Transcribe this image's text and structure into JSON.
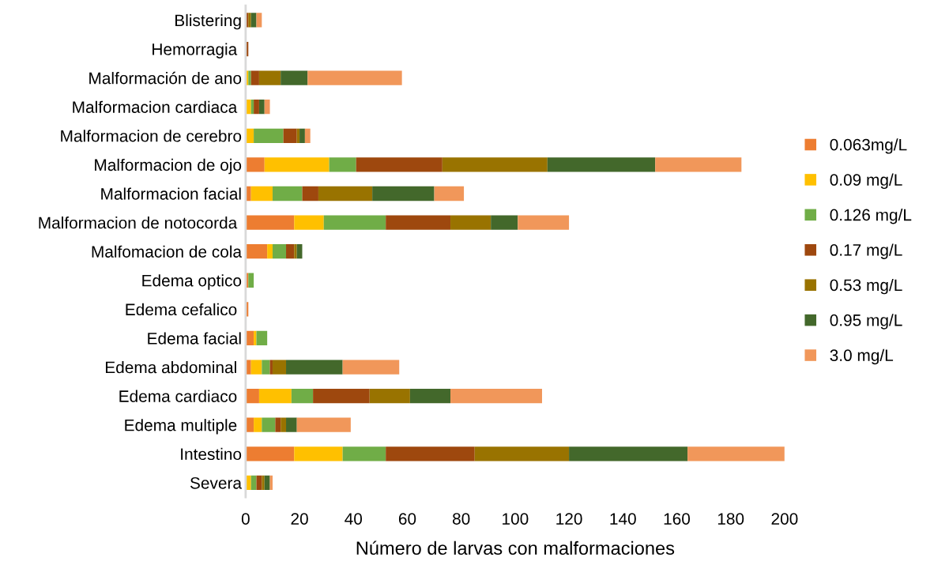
{
  "chart_data": {
    "type": "bar",
    "orientation": "horizontal",
    "stacked": true,
    "xlabel": "Número de larvas con malformaciones",
    "categories": [
      "Blistering",
      "Hemorragia ",
      "Malformación de ano",
      "Malformacion cardiaca ",
      "Malformacion de cerebro",
      "Malformacion de ojo",
      "Malformacion facial",
      "Malformacion de notocorda ",
      "Malfomacion de cola",
      "Edema optico",
      "Edema cefalico ",
      "Edema facial",
      "Edema abdominal ",
      "Edema cardiaco ",
      "Edema multiple ",
      "Intestino",
      "Severa"
    ],
    "series": [
      {
        "name": "0.063mg/L",
        "color": "#ed7d31",
        "values": [
          0,
          0,
          0,
          0,
          0,
          7,
          2,
          18,
          8,
          1,
          1,
          3,
          2,
          5,
          3,
          18,
          0
        ]
      },
      {
        "name": "0.09 mg/L",
        "color": "#ffc000",
        "values": [
          0,
          0,
          1,
          2,
          3,
          24,
          8,
          11,
          2,
          0,
          0,
          1,
          4,
          12,
          3,
          18,
          2
        ]
      },
      {
        "name": "0.126 mg/L",
        "color": "#70ad47",
        "values": [
          0,
          0,
          1,
          1,
          11,
          10,
          11,
          23,
          5,
          2,
          0,
          4,
          3,
          8,
          5,
          16,
          2
        ]
      },
      {
        "name": "0.17 mg/L",
        "color": "#9e480e",
        "values": [
          1,
          1,
          3,
          2,
          5,
          32,
          6,
          24,
          3,
          0,
          0,
          0,
          1,
          21,
          2,
          33,
          2
        ]
      },
      {
        "name": "0.53 mg/L",
        "color": "#997300",
        "values": [
          1,
          0,
          8,
          0,
          1,
          39,
          20,
          15,
          1,
          0,
          0,
          0,
          5,
          15,
          2,
          35,
          1
        ]
      },
      {
        "name": "0.95 mg/L",
        "color": "#43682b",
        "values": [
          2,
          0,
          10,
          2,
          2,
          40,
          23,
          10,
          2,
          0,
          0,
          0,
          21,
          15,
          4,
          44,
          2
        ]
      },
      {
        "name": "3.0 mg/L",
        "color": "#f1975a",
        "values": [
          2,
          0,
          35,
          2,
          2,
          32,
          11,
          19,
          0,
          0,
          0,
          0,
          21,
          34,
          20,
          36,
          1
        ]
      }
    ],
    "xlim": [
      0,
      200
    ],
    "xticks": [
      0,
      20,
      40,
      60,
      80,
      100,
      120,
      140,
      160,
      180,
      200
    ],
    "grid": false,
    "legend": "right"
  }
}
